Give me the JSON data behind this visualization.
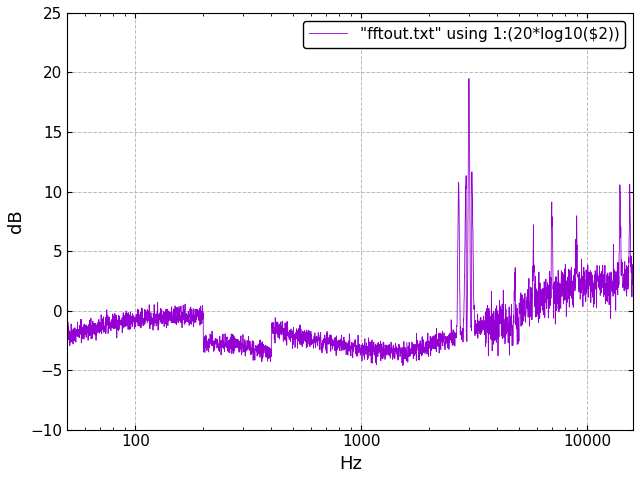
{
  "title": "",
  "xlabel": "Hz",
  "ylabel": "dB",
  "xlim": [
    50,
    16000
  ],
  "ylim": [
    -10,
    25
  ],
  "yticks": [
    -10,
    -5,
    0,
    5,
    10,
    15,
    20,
    25
  ],
  "legend_label": "\"fftout.txt\" using 1:(20*log10($2))",
  "line_color": "#9400D3",
  "bg_color": "#ffffff",
  "grid_color": "#aaaaaa",
  "figsize": [
    6.4,
    4.8
  ],
  "dpi": 100
}
